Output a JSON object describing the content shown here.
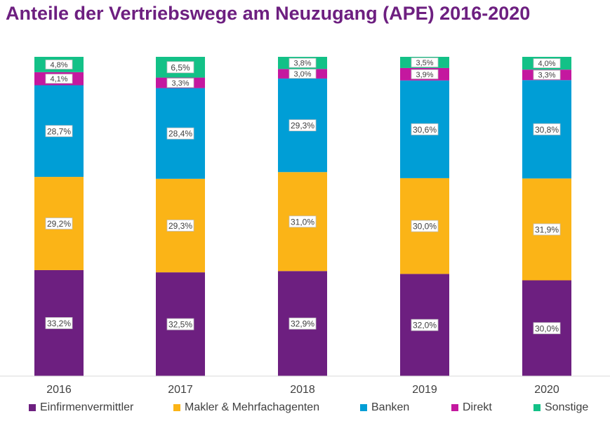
{
  "title": "Anteile der Vertriebswege am Neuzugang (APE) 2016-2020",
  "colors": {
    "title": "#6d1f80",
    "Einfirmenvermittler": "#6d1f80",
    "Makler & Mehrfachagenten": "#fbb417",
    "Banken": "#009ed6",
    "Direkt": "#c4189f",
    "Sonstige": "#13c187"
  },
  "chart_data": {
    "type": "bar",
    "stacked": true,
    "categories": [
      "2016",
      "2017",
      "2018",
      "2019",
      "2020"
    ],
    "series": [
      {
        "name": "Einfirmenvermittler",
        "values": [
          33.2,
          32.5,
          32.9,
          32.0,
          30.0
        ],
        "labels": [
          "33,2%",
          "32,5%",
          "32,9%",
          "32,0%",
          "30,0%"
        ]
      },
      {
        "name": "Makler & Mehrfachagenten",
        "values": [
          29.2,
          29.3,
          31.0,
          30.0,
          31.9
        ],
        "labels": [
          "29,2%",
          "29,3%",
          "31,0%",
          "30,0%",
          "31,9%"
        ]
      },
      {
        "name": "Banken",
        "values": [
          28.7,
          28.4,
          29.3,
          30.6,
          30.8
        ],
        "labels": [
          "28,7%",
          "28,4%",
          "29,3%",
          "30,6%",
          "30,8%"
        ]
      },
      {
        "name": "Direkt",
        "values": [
          4.1,
          3.3,
          3.0,
          3.9,
          3.3
        ],
        "labels": [
          "4,1%",
          "3,3%",
          "3,0%",
          "3,9%",
          "3,3%"
        ]
      },
      {
        "name": "Sonstige",
        "values": [
          4.8,
          6.5,
          3.8,
          3.5,
          4.0
        ],
        "labels": [
          "4,8%",
          "6,5%",
          "3,8%",
          "3,5%",
          "4,0%"
        ]
      }
    ],
    "legend_position": "bottom",
    "grid": false
  }
}
